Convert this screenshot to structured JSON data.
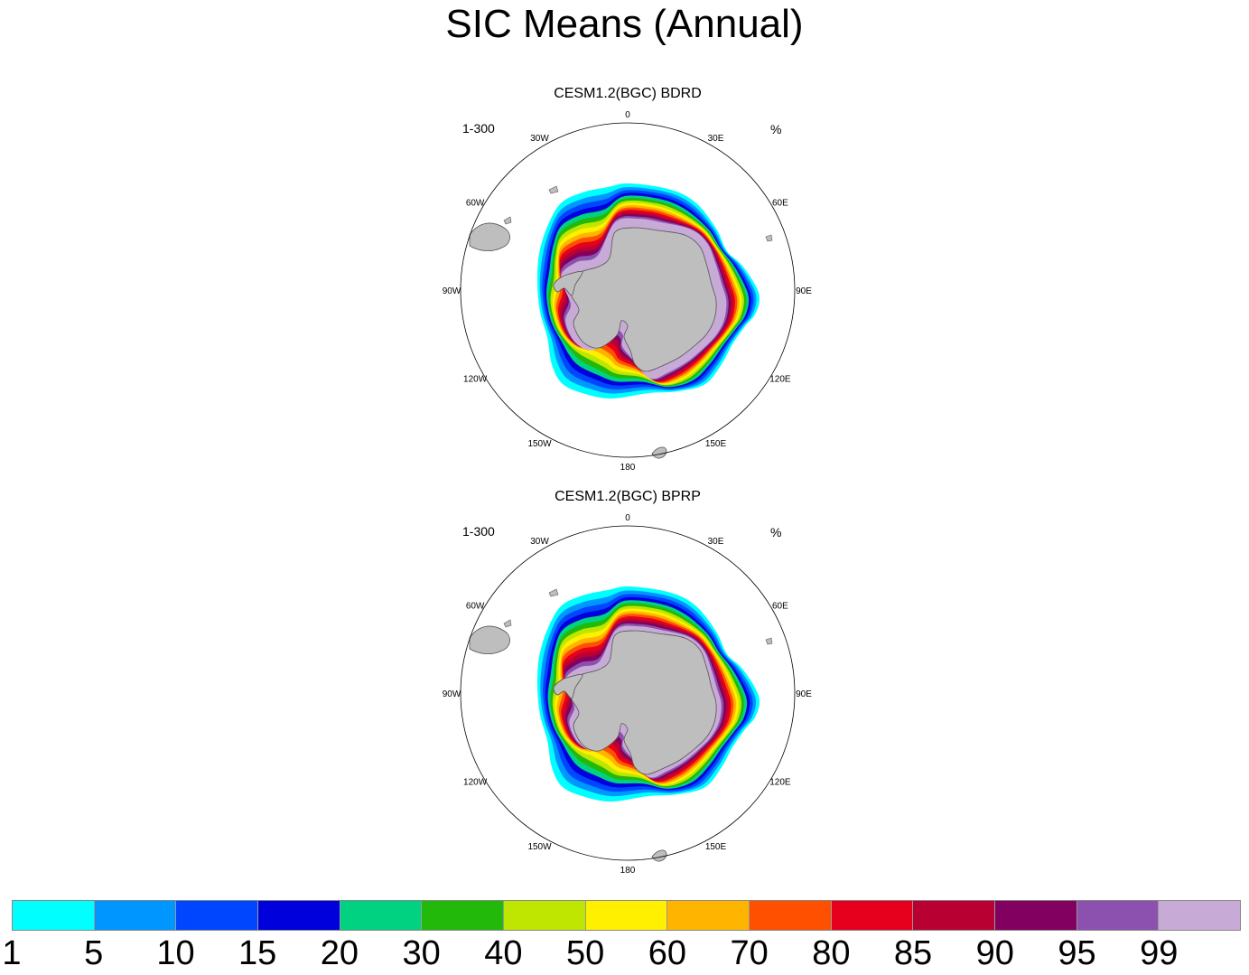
{
  "title": "SIC Means (Annual)",
  "panels": [
    {
      "title": "CESM1.2(BGC) BDRD",
      "left_string": "1-300",
      "right_string": "%"
    },
    {
      "title": "CESM1.2(BGC) BPRP",
      "left_string": "1-300",
      "right_string": "%"
    }
  ],
  "longitude_labels": [
    "0",
    "30E",
    "60E",
    "90E",
    "120E",
    "150E",
    "180",
    "150W",
    "120W",
    "90W",
    "60W",
    "30W"
  ],
  "colorbar": {
    "labels": [
      "1",
      "5",
      "10",
      "15",
      "20",
      "30",
      "40",
      "50",
      "60",
      "70",
      "80",
      "85",
      "90",
      "95",
      "99"
    ],
    "colors": [
      "#00ffff",
      "#0096ff",
      "#0046ff",
      "#0000dc",
      "#00d282",
      "#23b90a",
      "#bee600",
      "#fff000",
      "#ffb400",
      "#ff5000",
      "#e6001e",
      "#b90032",
      "#82005f",
      "#8c50af",
      "#c8aad7"
    ]
  },
  "colors": {
    "land": "#bebebe",
    "ocean": "#ffffff",
    "coast": "#555555"
  }
}
